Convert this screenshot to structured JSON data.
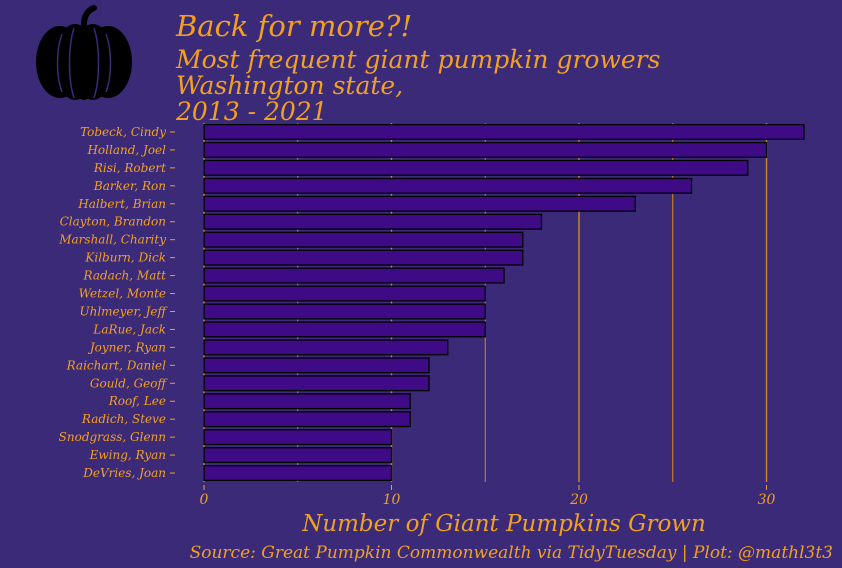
{
  "title": "Back for more?!",
  "subtitle_lines": [
    "Most frequent giant pumpkin growers",
    "Washington state,",
    "2013 - 2021"
  ],
  "caption": "Source: Great Pumpkin Commonwealth via TidyTuesday | Plot: @mathl3t3",
  "colors": {
    "background": "#3a2a78",
    "bar_fill": "#3f0a86",
    "bar_stroke": "#000000",
    "text": "#f2a022",
    "grid": "#d38a1e",
    "pumpkin": "#000000"
  },
  "icons": {
    "logo": "pumpkin-icon"
  },
  "chart_data": {
    "type": "bar",
    "orientation": "horizontal",
    "categories": [
      "Tobeck, Cindy",
      "Holland, Joel",
      "Risi, Robert",
      "Barker, Ron",
      "Halbert, Brian",
      "Clayton, Brandon",
      "Marshall, Charity",
      "Kilburn, Dick",
      "Radach, Matt",
      "Wetzel, Monte",
      "Uhlmeyer, Jeff",
      "LaRue, Jack",
      "Joyner, Ryan",
      "Raichart, Daniel",
      "Gould, Geoff",
      "Roof, Lee",
      "Radich, Steve",
      "Snodgrass, Glenn",
      "Ewing, Ryan",
      "DeVries, Joan"
    ],
    "values": [
      32,
      30,
      29,
      26,
      23,
      18,
      17,
      17,
      16,
      15,
      15,
      15,
      13,
      12,
      12,
      11,
      11,
      10,
      10,
      10
    ],
    "xlabel": "Number of Giant Pumpkins Grown",
    "ylabel": "",
    "xlim": [
      0,
      33
    ],
    "xticks": [
      0,
      10,
      20,
      30
    ],
    "grid": "vertical major and minor lines drawn behind bars",
    "legend": "none"
  }
}
